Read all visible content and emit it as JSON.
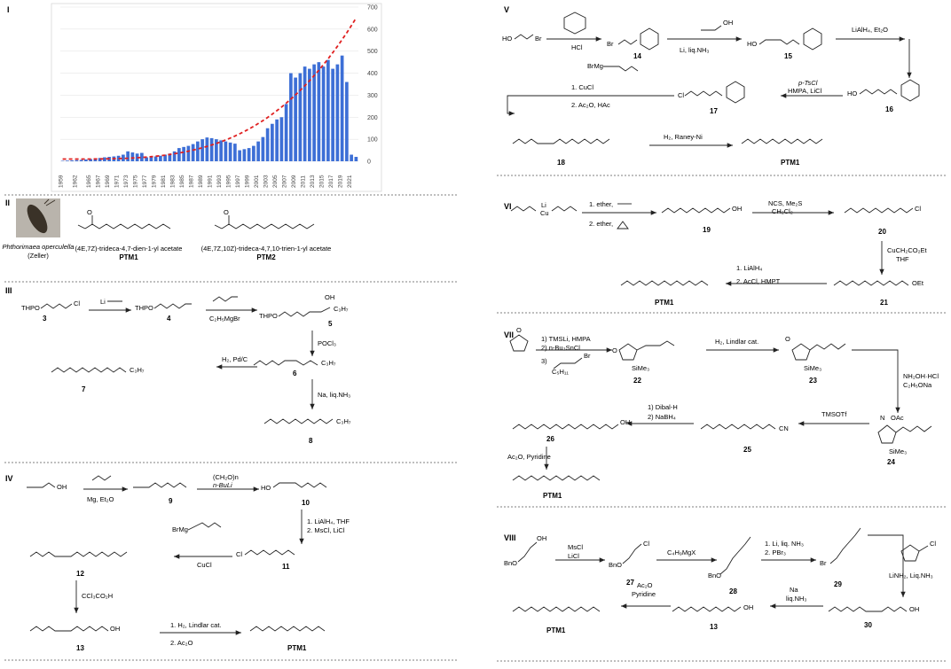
{
  "sections": {
    "I": "I",
    "II": "II",
    "III": "III",
    "IV": "IV",
    "V": "V",
    "VI": "VI",
    "VII": "VII",
    "VIII": "VIII"
  },
  "chart_data": {
    "type": "bar",
    "categories": [
      "1959",
      "1960",
      "1961",
      "1962",
      "1963",
      "1964",
      "1965",
      "1966",
      "1967",
      "1968",
      "1969",
      "1970",
      "1971",
      "1972",
      "1973",
      "1974",
      "1975",
      "1976",
      "1977",
      "1978",
      "1979",
      "1980",
      "1981",
      "1982",
      "1983",
      "1984",
      "1985",
      "1986",
      "1987",
      "1988",
      "1989",
      "1990",
      "1991",
      "1992",
      "1993",
      "1994",
      "1995",
      "1996",
      "1997",
      "1998",
      "1999",
      "2000",
      "2001",
      "2002",
      "2003",
      "2004",
      "2005",
      "2006",
      "2007",
      "2008",
      "2009",
      "2010",
      "2011",
      "2012",
      "2013",
      "2014",
      "2015",
      "2016",
      "2017",
      "2018",
      "2019",
      "2020",
      "2021",
      "2022"
    ],
    "tick_labels": [
      "1959",
      "1962",
      "1965",
      "1967",
      "1969",
      "1971",
      "1973",
      "1975",
      "1977",
      "1979",
      "1981",
      "1983",
      "1985",
      "1987",
      "1989",
      "1991",
      "1993",
      "1995",
      "1997",
      "1999",
      "2001",
      "2003",
      "2005",
      "2007",
      "2009",
      "2011",
      "2013",
      "2015",
      "2017",
      "2019",
      "2021"
    ],
    "values": [
      2,
      3,
      4,
      5,
      6,
      8,
      10,
      12,
      15,
      18,
      20,
      22,
      25,
      30,
      45,
      40,
      35,
      38,
      18,
      20,
      22,
      25,
      30,
      35,
      45,
      60,
      65,
      70,
      78,
      90,
      100,
      108,
      105,
      100,
      95,
      90,
      85,
      80,
      50,
      55,
      60,
      70,
      90,
      110,
      150,
      170,
      190,
      200,
      260,
      400,
      380,
      400,
      430,
      420,
      440,
      450,
      430,
      460,
      420,
      440,
      480,
      360,
      30,
      20
    ],
    "trend_color": "#e02020",
    "bar_color": "#3d6fd6",
    "ylim": [
      0,
      700
    ],
    "yticks": [
      "0",
      "100",
      "200",
      "300",
      "400",
      "500",
      "600",
      "700"
    ]
  },
  "moth": {
    "caption1": "Phthorimaea operculella",
    "caption2": "(Zeller)"
  },
  "ptm": {
    "name1": "(4E,7Z)-trideca-4,7-dien-1-yl acetate",
    "label1": "PTM1",
    "name2": "(4E,7Z,10Z)-trideca-4,7,10-trien-1-yl acetate",
    "label2": "PTM2"
  },
  "s3": {
    "thpo": "THPO",
    "li": "Li",
    "c3h7": "C₃H₇",
    "oh": "OH",
    "r1": "C₂H₅MgBr",
    "r2": "POCl₃",
    "r3": "H₂, Pd/C",
    "r4": "Na, liq.NH₃",
    "c3": "3",
    "c4": "4",
    "c5": "5",
    "c6": "6",
    "c7": "7",
    "c8": "8",
    "cl": "Cl"
  },
  "s4": {
    "oh": "OH",
    "r1": "Mg, Et₂O",
    "r2a": "(CH₂O)n",
    "r2b": "n-BuLi",
    "r3a": "1. LiAlH₄, THF",
    "r3b": "2. MsCl, LiCl",
    "r4": "CuCl",
    "r5": "CCl₃CO₂H",
    "r6a": "1. H₂, Lindlar cat.",
    "r6b": "2. Ac₂O",
    "brmg": "BrMg",
    "cl": "Cl",
    "ho": "HO",
    "c9": "9",
    "c10": "10",
    "c11": "11",
    "c12": "12",
    "c13": "13",
    "ptm": "PTM1"
  },
  "s5": {
    "ho": "HO",
    "br": "Br",
    "oh": "OH",
    "cl": "Cl",
    "brmg": "BrMg",
    "r1": "HCl",
    "r2": "Li, liq.NH₃",
    "r3": "LiAlH₄, Et₂O",
    "r4a": "p-TsCl",
    "r4b": "HMPA, LiCl",
    "r5a": "1. CuCl",
    "r5b": "2. Ac₂O, HAc",
    "r6": "H₂, Raney-Ni",
    "c14": "14",
    "c15": "15",
    "c16": "16",
    "c17": "17",
    "c18": "18",
    "ptm": "PTM1"
  },
  "s6": {
    "li": "Li",
    "cu": "Cu",
    "oh": "OH",
    "cl": "Cl",
    "oet": "OEt",
    "r1a": "1. ether,",
    "r1b": "2. ether,",
    "r2a": "NCS, Me₂S",
    "r2b": "CH₂Cl₂",
    "r3a": "CuCH₂CO₂Et",
    "r3b": "THF",
    "r4a": "1. LiAlH₄",
    "r4b": "2. AcCl, HMPT",
    "c19": "19",
    "c20": "20",
    "c21": "21",
    "ptm": "PTM1"
  },
  "s7": {
    "r1a": "1) TMSLi, HMPA",
    "r1b": "2) n-Bu₃SnCl",
    "r1c": "3)",
    "r1d": "C₅H₁₁",
    "br": "Br",
    "r2": "H₂, Lindlar cat.",
    "r3a": "NH₂OH·HCl",
    "r3b": "C₂H₅ONa",
    "r4": "TMSOTf",
    "r5a": "1) Dibal-H",
    "r5b": "2) NaBH₄",
    "r6": "Ac₂O, Pyridine",
    "sime3": "SiMe₃",
    "oac": "OAc",
    "cn": "CN",
    "oh": "OH",
    "o": "O",
    "n": "N",
    "c22": "22",
    "c23": "23",
    "c24": "24",
    "c25": "25",
    "c26": "26",
    "ptm": "PTM1"
  },
  "s8": {
    "bno": "BnO",
    "oh": "OH",
    "cl": "Cl",
    "br": "Br",
    "r1a": "MsCl",
    "r1b": "LiCl",
    "r2": "C₄H₉MgX",
    "r3a": "1. Li, liq. NH₃",
    "r3b": "2. PBr₃",
    "r4": "LiNH₂, Liq.NH₃",
    "r5a": "Na",
    "r5b": "liq.NH₃",
    "r6a": "Ac₂O",
    "r6b": "Pyridine",
    "c27": "27",
    "c28": "28",
    "c29": "29",
    "c30": "30",
    "c13": "13",
    "ptm": "PTM1"
  }
}
